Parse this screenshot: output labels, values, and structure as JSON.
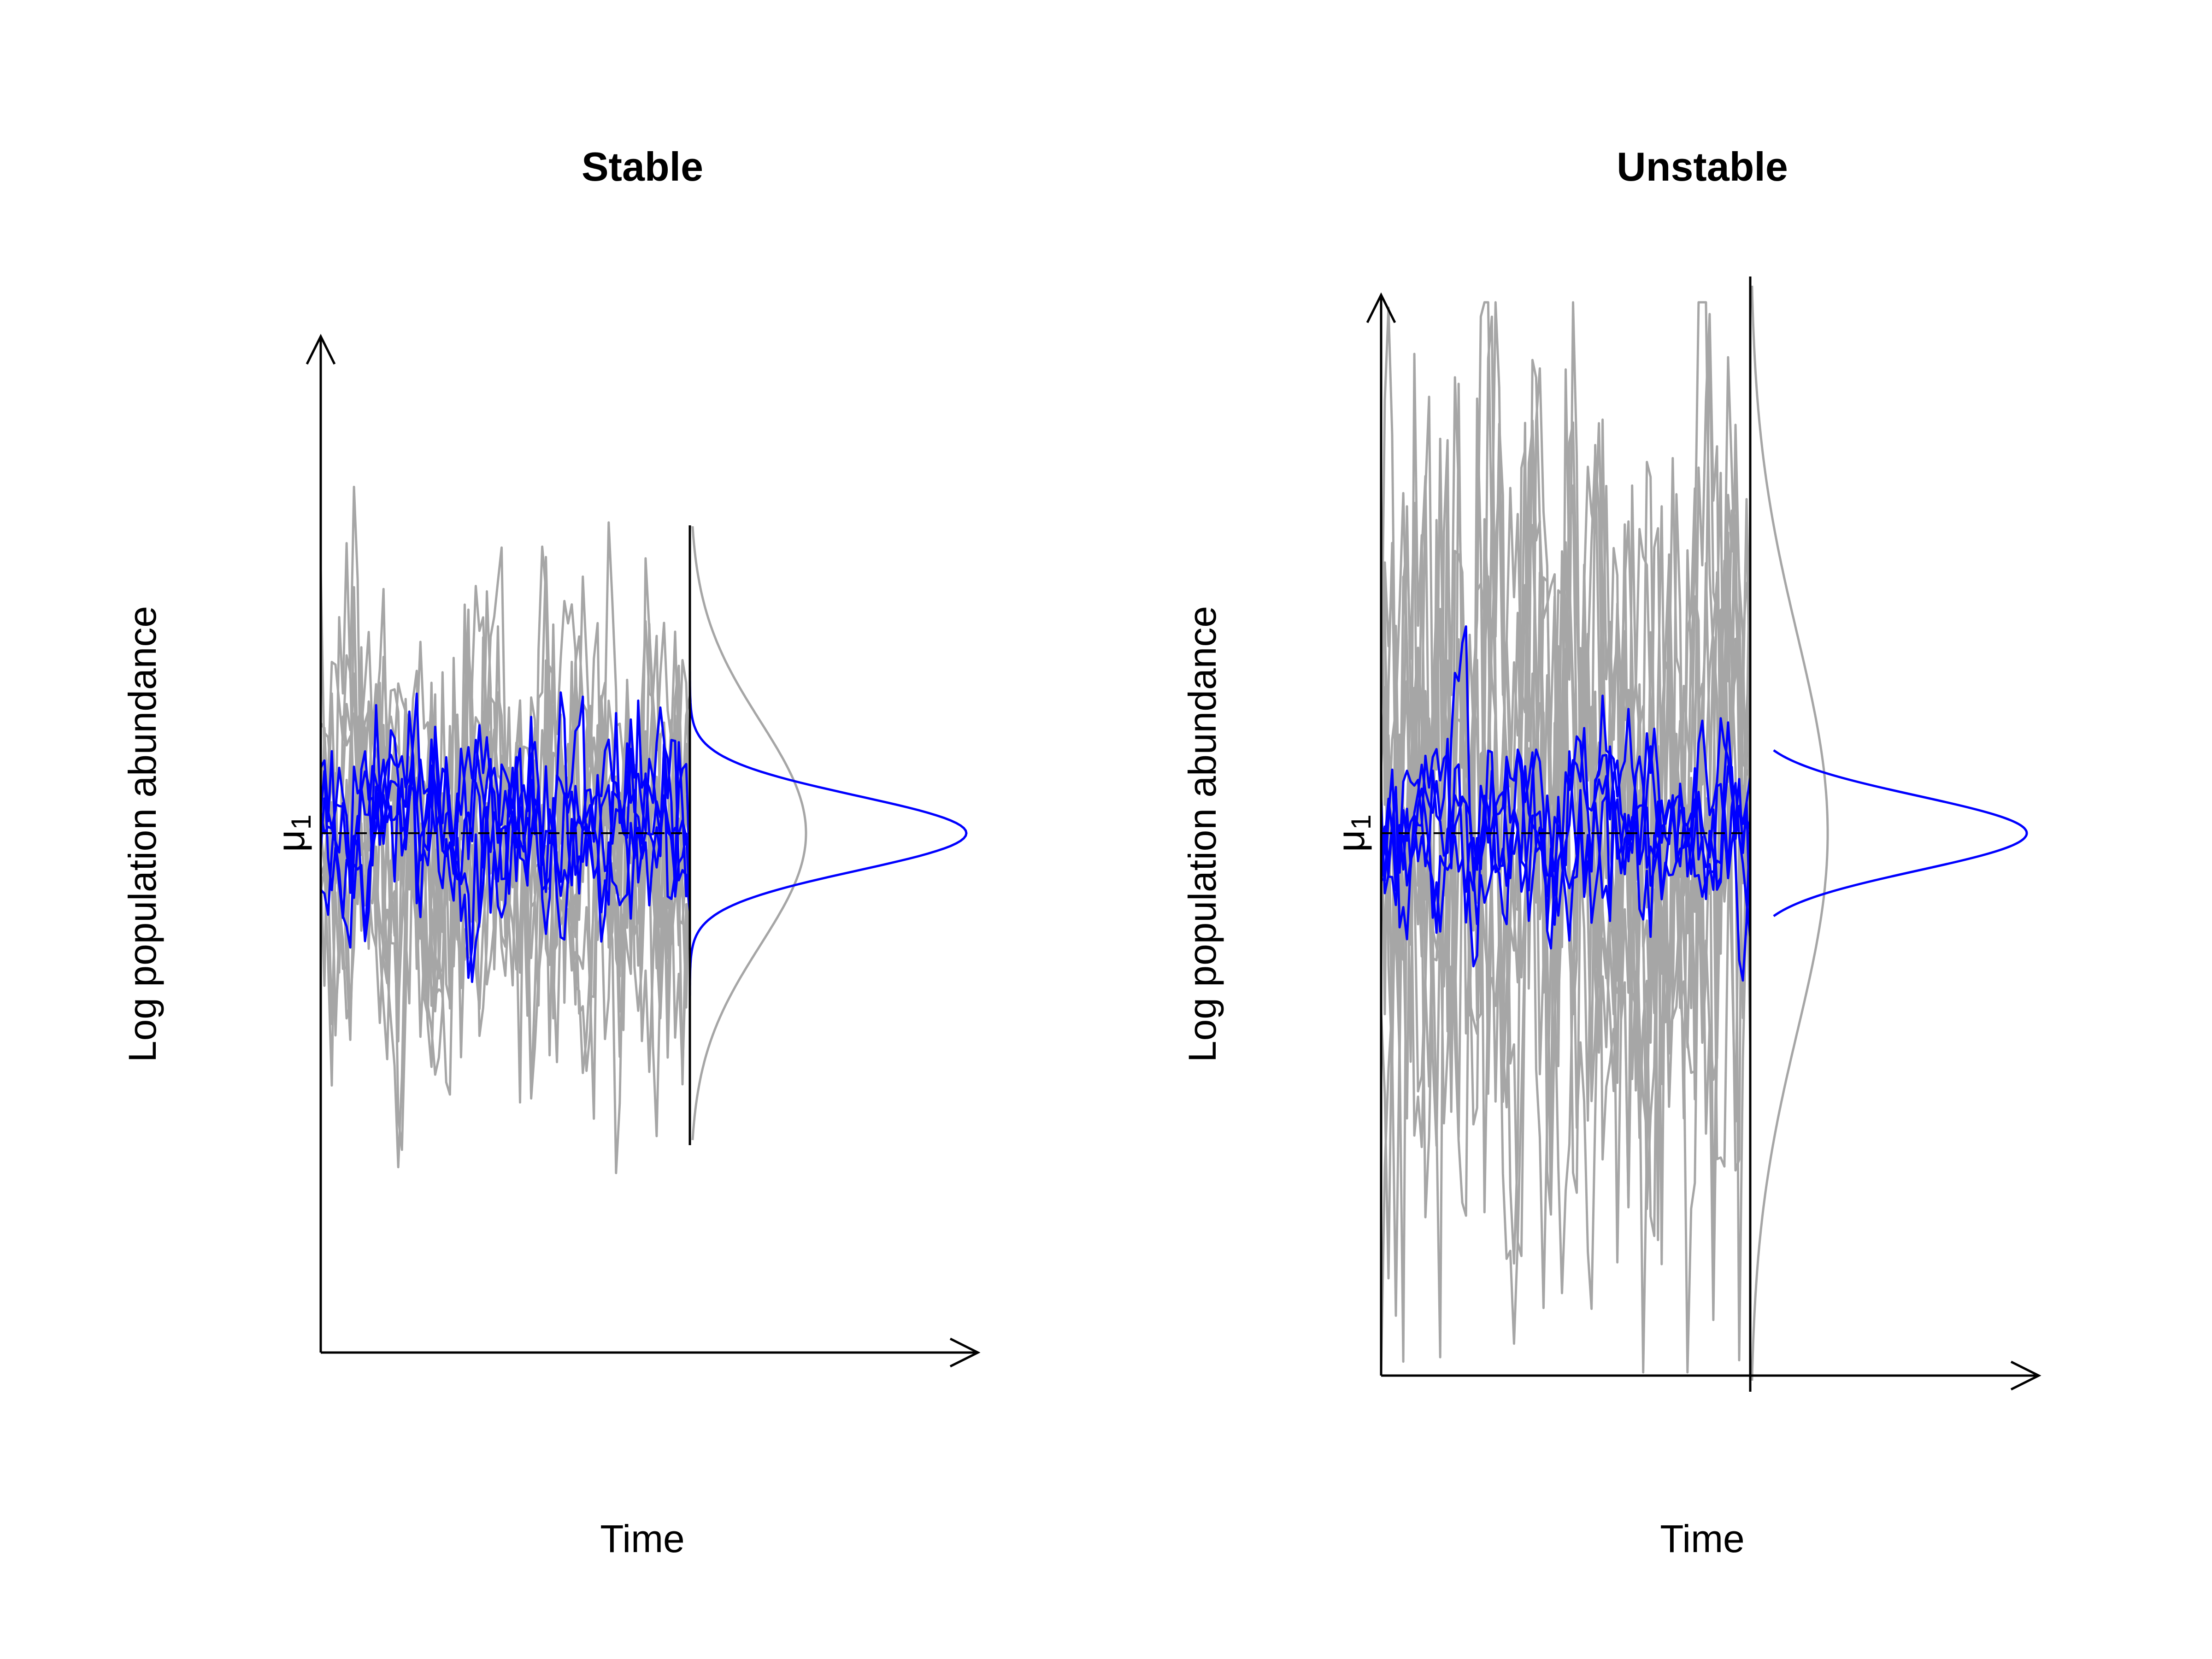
{
  "chart_data": [
    {
      "type": "line",
      "title": "Stable",
      "xlabel": "Time",
      "ylabel": "Log population abundance",
      "reference_line": {
        "label_base": "μ",
        "label_sub": "1",
        "y": 0,
        "style": "dashed"
      },
      "x": {
        "min": 0,
        "max": 100
      },
      "ylim": [
        -6.5,
        5.5
      ],
      "series": [
        {
          "name": "gray trajectories",
          "color": "#a6a6a6",
          "count": 10,
          "sd": 1.35,
          "seed": 11
        },
        {
          "name": "blue trajectories",
          "color": "#0000ff",
          "count": 5,
          "sd": 0.62,
          "seed": 29
        }
      ],
      "densities": [
        {
          "name": "gray stationary density",
          "color": "#a6a6a6",
          "sd": 1.35,
          "span": 3.7
        },
        {
          "name": "blue stationary density",
          "color": "#0000ff",
          "sd": 0.45,
          "span": 3.7
        }
      ],
      "grid": false,
      "legend": "none"
    },
    {
      "type": "line",
      "title": "Unstable",
      "xlabel": "Time",
      "ylabel": "Log population abundance",
      "reference_line": {
        "label_base": "μ",
        "label_sub": "1",
        "y": 0,
        "style": "dashed"
      },
      "x": {
        "min": 0,
        "max": 100
      },
      "ylim": [
        -6.5,
        6.4
      ],
      "series": [
        {
          "name": "gray trajectories",
          "color": "#a6a6a6",
          "count": 10,
          "sd": 2.4,
          "seed": 47
        },
        {
          "name": "blue trajectories",
          "color": "#0000ff",
          "count": 5,
          "sd": 0.62,
          "seed": 83
        }
      ],
      "densities": [
        {
          "name": "gray stationary density",
          "color": "#a6a6a6",
          "sd": 2.4,
          "span": 6.6
        },
        {
          "name": "blue stationary density",
          "color": "#0000ff",
          "sd": 0.45,
          "span": 1.0
        }
      ],
      "grid": false,
      "legend": "none"
    }
  ]
}
